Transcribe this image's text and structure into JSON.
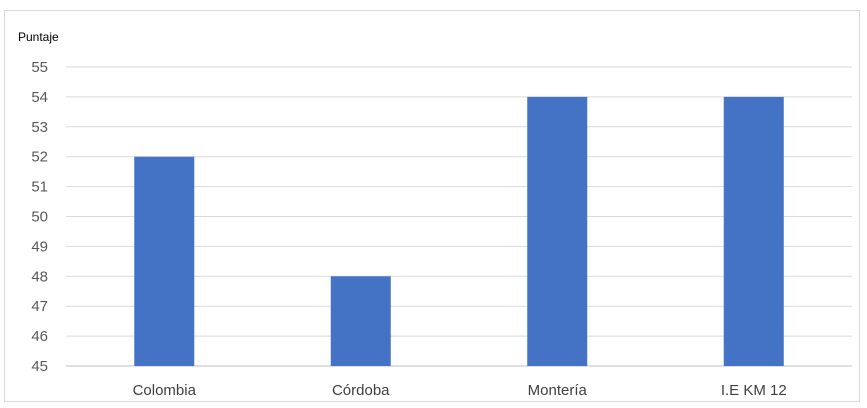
{
  "chart_data": {
    "type": "bar",
    "title": "",
    "xlabel": "",
    "ylabel": "Puntaje",
    "categories": [
      "Colombia",
      "Córdoba",
      "Montería",
      "I.E KM 12"
    ],
    "values": [
      52,
      48,
      54,
      54
    ],
    "ylim": [
      45,
      55
    ],
    "yticks": [
      45,
      46,
      47,
      48,
      49,
      50,
      51,
      52,
      53,
      54,
      55
    ],
    "grid": true,
    "legend": "none",
    "bar_color": "#4472C4"
  }
}
